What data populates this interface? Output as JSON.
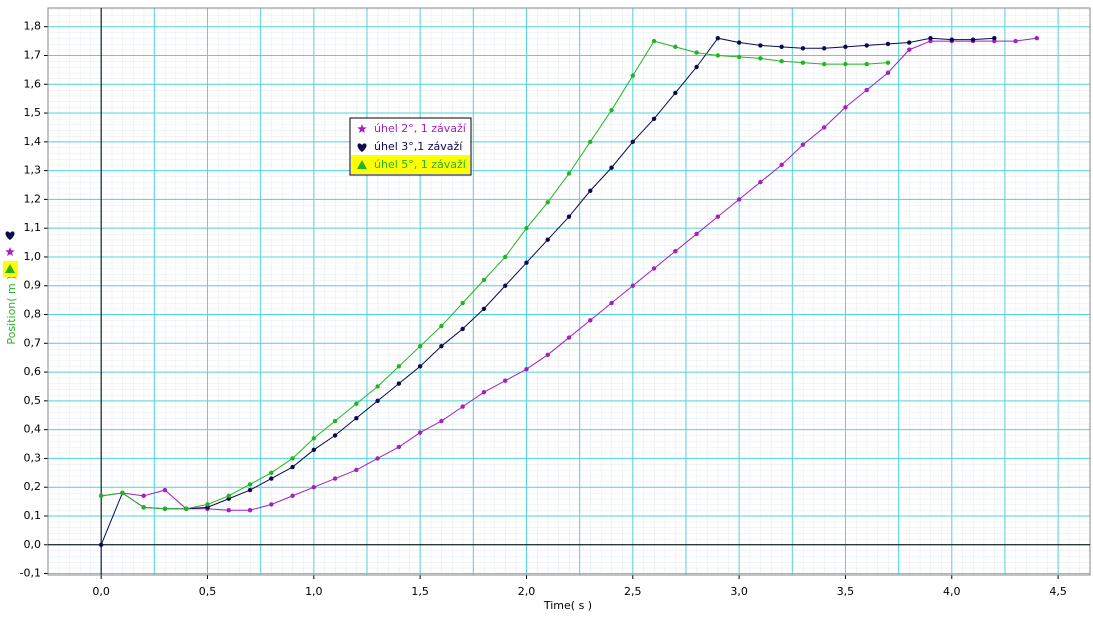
{
  "chart_data": {
    "type": "line",
    "x_label": "Time( s )",
    "y_label": "Position( m )",
    "x": [
      0,
      0.1,
      0.2,
      0.3,
      0.4,
      0.5,
      0.6,
      0.7,
      0.8,
      0.9,
      1.0,
      1.1,
      1.2,
      1.3,
      1.4,
      1.5,
      1.6,
      1.7,
      1.8,
      1.9,
      2.0,
      2.1,
      2.2,
      2.3,
      2.4,
      2.5,
      2.6,
      2.7,
      2.8,
      2.9,
      3.0,
      3.1,
      3.2,
      3.3,
      3.4,
      3.5,
      3.6,
      3.7,
      3.8,
      3.9,
      4.0,
      4.1,
      4.2,
      4.3,
      4.4
    ],
    "series": [
      {
        "name": "úhel 2°, 1 závaží",
        "color": "#a020c0",
        "marker": "star",
        "values": [
          0.17,
          0.18,
          0.17,
          0.19,
          0.125,
          0.125,
          0.12,
          0.12,
          0.14,
          0.17,
          0.2,
          0.23,
          0.26,
          0.3,
          0.34,
          0.39,
          0.43,
          0.48,
          0.53,
          0.57,
          0.61,
          0.66,
          0.72,
          0.78,
          0.84,
          0.9,
          0.96,
          1.02,
          1.08,
          1.14,
          1.2,
          1.26,
          1.32,
          1.39,
          1.45,
          1.52,
          1.58,
          1.64,
          1.72,
          1.75,
          1.75,
          1.75,
          1.75,
          1.75,
          1.76
        ]
      },
      {
        "name": "úhel 3°,1 závaží",
        "color": "#0a0a50",
        "marker": "heart",
        "values": [
          0.0,
          0.18,
          0.13,
          0.125,
          0.125,
          0.13,
          0.16,
          0.19,
          0.23,
          0.27,
          0.33,
          0.38,
          0.44,
          0.5,
          0.56,
          0.62,
          0.69,
          0.75,
          0.82,
          0.9,
          0.98,
          1.06,
          1.14,
          1.23,
          1.31,
          1.4,
          1.48,
          1.57,
          1.66,
          1.76,
          1.745,
          1.735,
          1.73,
          1.725,
          1.725,
          1.73,
          1.735,
          1.74,
          1.745,
          1.76,
          1.755,
          1.755,
          1.76,
          null,
          null
        ]
      },
      {
        "name": "úhel 5°, 1 závaží",
        "color": "#22b422",
        "marker": "triangle",
        "values": [
          0.17,
          0.18,
          0.13,
          0.125,
          0.125,
          0.14,
          0.17,
          0.21,
          0.25,
          0.3,
          0.37,
          0.43,
          0.49,
          0.55,
          0.62,
          0.69,
          0.76,
          0.84,
          0.92,
          1.0,
          1.1,
          1.19,
          1.29,
          1.4,
          1.51,
          1.63,
          1.75,
          1.73,
          1.71,
          1.7,
          1.695,
          1.69,
          1.68,
          1.675,
          1.67,
          1.67,
          1.67,
          1.675,
          null,
          null,
          null,
          null,
          null,
          null,
          null
        ]
      }
    ],
    "xlim": [
      -0.25,
      4.65
    ],
    "ylim": [
      -0.105,
      1.865
    ],
    "xticks": [
      {
        "value": 0,
        "label": "0,0"
      },
      {
        "value": 0.5,
        "label": "0,5"
      },
      {
        "value": 1.0,
        "label": "1,0"
      },
      {
        "value": 1.5,
        "label": "1,5"
      },
      {
        "value": 2.0,
        "label": "2,0"
      },
      {
        "value": 2.5,
        "label": "2,5"
      },
      {
        "value": 3.0,
        "label": "3,0"
      },
      {
        "value": 3.5,
        "label": "3,5"
      },
      {
        "value": 4.0,
        "label": "4,0"
      },
      {
        "value": 4.5,
        "label": "4,5"
      }
    ],
    "yticks": [
      {
        "value": -0.1,
        "label": "-0,1"
      },
      {
        "value": 0,
        "label": "0,0"
      },
      {
        "value": 0.1,
        "label": "0,1"
      },
      {
        "value": 0.2,
        "label": "0,2"
      },
      {
        "value": 0.3,
        "label": "0,3"
      },
      {
        "value": 0.4,
        "label": "0,4"
      },
      {
        "value": 0.5,
        "label": "0,5"
      },
      {
        "value": 0.6,
        "label": "0,6"
      },
      {
        "value": 0.7,
        "label": "0,7"
      },
      {
        "value": 0.8,
        "label": "0,8"
      },
      {
        "value": 0.9,
        "label": "0,9"
      },
      {
        "value": 1.0,
        "label": "1,0"
      },
      {
        "value": 1.1,
        "label": "1,1"
      },
      {
        "value": 1.2,
        "label": "1,2"
      },
      {
        "value": 1.3,
        "label": "1,3"
      },
      {
        "value": 1.4,
        "label": "1,4"
      },
      {
        "value": 1.5,
        "label": "1,5"
      },
      {
        "value": 1.6,
        "label": "1,6"
      },
      {
        "value": 1.7,
        "label": "1,7"
      },
      {
        "value": 1.8,
        "label": "1,8"
      }
    ],
    "grid": true
  }
}
